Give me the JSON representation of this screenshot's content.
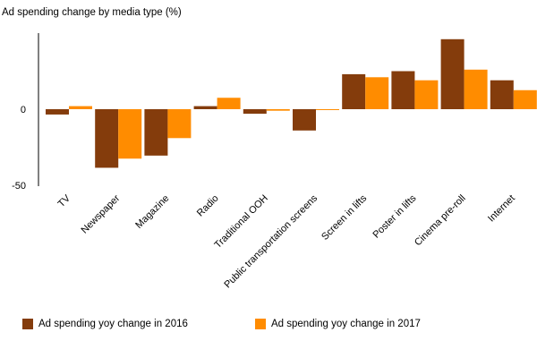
{
  "chart_data": {
    "type": "bar",
    "title": "Ad spending change by media type (%)",
    "xlabel": "",
    "ylabel": "",
    "ylim": [
      -50,
      50
    ],
    "yticks": [
      0,
      -50
    ],
    "categories": [
      "TV",
      "Newspaper",
      "Magazine",
      "Radio",
      "Traditional OOH",
      "Public transportation screens",
      "Screen in lifts",
      "Poster in lifts",
      "Cinema pre-roll",
      "Internet"
    ],
    "series": [
      {
        "name": "Ad spending yoy change in 2016",
        "color": "#843c0c",
        "values": [
          -3.5,
          -38.5,
          -30.5,
          2,
          -3,
          -14,
          23,
          25,
          46,
          19
        ]
      },
      {
        "name": "Ad spending yoy change in 2017",
        "color": "#ff8c00",
        "values": [
          2,
          -32.5,
          -19,
          7.5,
          -1,
          -0.5,
          21,
          19,
          26,
          12.5
        ]
      }
    ],
    "legend_position": "bottom",
    "grid": false
  }
}
